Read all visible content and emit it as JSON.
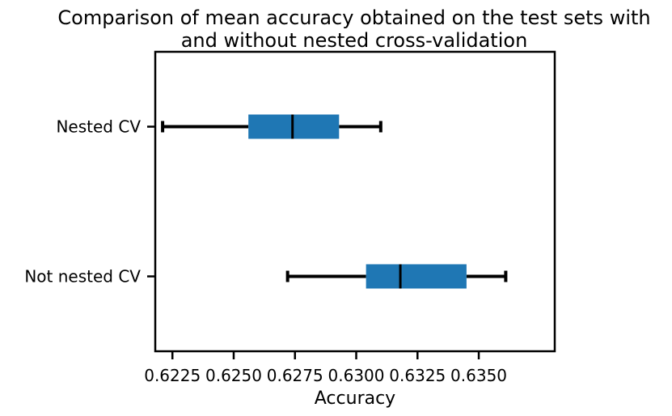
{
  "chart_data": {
    "type": "boxplot",
    "orientation": "horizontal",
    "title": "Comparison of mean accuracy obtained on the test sets with\nand without nested cross-validation",
    "xlabel": "Accuracy",
    "ylabel": "",
    "xlim": [
      0.6218,
      0.6381
    ],
    "x_ticks": [
      0.6225,
      0.625,
      0.6275,
      0.63,
      0.6325,
      0.635
    ],
    "x_tick_labels": [
      "0.6225",
      "0.6250",
      "0.6275",
      "0.6300",
      "0.6325",
      "0.6350"
    ],
    "grid": false,
    "box_color": "#1f77b4",
    "series": [
      {
        "name": "Nested CV",
        "whisker_low": 0.6221,
        "q1": 0.6256,
        "median": 0.6274,
        "q3": 0.6293,
        "whisker_high": 0.631
      },
      {
        "name": "Not nested CV",
        "whisker_low": 0.6272,
        "q1": 0.6304,
        "median": 0.6318,
        "q3": 0.6345,
        "whisker_high": 0.6361
      }
    ]
  }
}
